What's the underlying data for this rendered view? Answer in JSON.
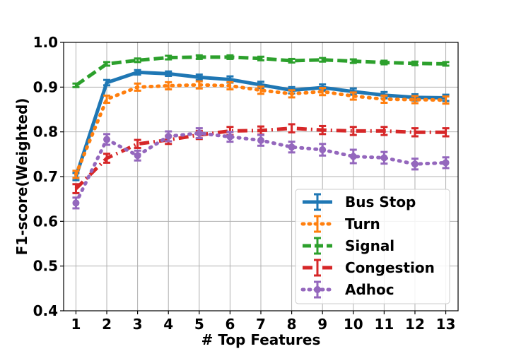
{
  "chart_data": {
    "type": "line",
    "xlabel": "# Top Features",
    "ylabel": "F1-score(Weighted)",
    "x": [
      1,
      2,
      3,
      4,
      5,
      6,
      7,
      8,
      9,
      10,
      11,
      12,
      13
    ],
    "xlim": [
      0.6,
      13.4
    ],
    "ylim": [
      0.4,
      1.0
    ],
    "yticks": [
      "0.4",
      "0.5",
      "0.6",
      "0.7",
      "0.8",
      "0.9",
      "1.0"
    ],
    "grid": true,
    "legend_position": "lower-right",
    "series": [
      {
        "name": "Bus Stop",
        "color": "#1f77b4",
        "style": "solid",
        "values": [
          0.7,
          0.91,
          0.933,
          0.93,
          0.922,
          0.917,
          0.905,
          0.893,
          0.899,
          0.89,
          0.882,
          0.877,
          0.876
        ],
        "errors": [
          0.008,
          0.006,
          0.005,
          0.005,
          0.006,
          0.007,
          0.007,
          0.007,
          0.007,
          0.007,
          0.007,
          0.007,
          0.007
        ]
      },
      {
        "name": "Turn",
        "color": "#ff7f0e",
        "style": "dotted",
        "values": [
          0.705,
          0.873,
          0.9,
          0.903,
          0.905,
          0.903,
          0.893,
          0.885,
          0.89,
          0.88,
          0.873,
          0.872,
          0.871
        ],
        "errors": [
          0.008,
          0.008,
          0.008,
          0.008,
          0.008,
          0.008,
          0.008,
          0.008,
          0.008,
          0.008,
          0.008,
          0.008,
          0.008
        ]
      },
      {
        "name": "Signal",
        "color": "#2ca02c",
        "style": "dashed",
        "values": [
          0.904,
          0.952,
          0.96,
          0.966,
          0.967,
          0.967,
          0.964,
          0.959,
          0.961,
          0.958,
          0.955,
          0.953,
          0.952
        ],
        "errors": [
          0.004,
          0.004,
          0.004,
          0.004,
          0.004,
          0.004,
          0.004,
          0.004,
          0.004,
          0.004,
          0.004,
          0.004,
          0.004
        ]
      },
      {
        "name": "Congestion",
        "color": "#d62728",
        "style": "dashdot",
        "values": [
          0.673,
          0.741,
          0.773,
          0.782,
          0.793,
          0.802,
          0.803,
          0.808,
          0.804,
          0.802,
          0.802,
          0.799,
          0.799
        ],
        "errors": [
          0.01,
          0.01,
          0.009,
          0.009,
          0.009,
          0.009,
          0.009,
          0.009,
          0.009,
          0.009,
          0.009,
          0.009,
          0.009
        ]
      },
      {
        "name": "Adhoc",
        "color": "#9467bd",
        "style": "dotted",
        "marker": "circle",
        "values": [
          0.641,
          0.783,
          0.747,
          0.79,
          0.797,
          0.789,
          0.781,
          0.766,
          0.76,
          0.745,
          0.742,
          0.728,
          0.731
        ],
        "errors": [
          0.012,
          0.012,
          0.011,
          0.011,
          0.011,
          0.011,
          0.012,
          0.012,
          0.013,
          0.015,
          0.013,
          0.012,
          0.012
        ]
      }
    ]
  }
}
